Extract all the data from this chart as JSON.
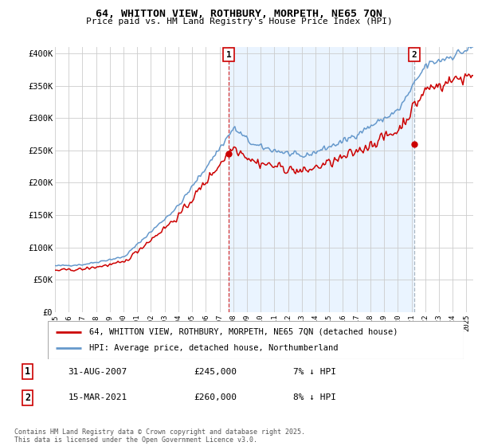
{
  "title1": "64, WHITTON VIEW, ROTHBURY, MORPETH, NE65 7QN",
  "title2": "Price paid vs. HM Land Registry's House Price Index (HPI)",
  "ylabel_ticks": [
    "£0",
    "£50K",
    "£100K",
    "£150K",
    "£200K",
    "£250K",
    "£300K",
    "£350K",
    "£400K"
  ],
  "ytick_vals": [
    0,
    50000,
    100000,
    150000,
    200000,
    250000,
    300000,
    350000,
    400000
  ],
  "ylim": [
    0,
    410000
  ],
  "xlim_start": 1995.0,
  "xlim_end": 2025.5,
  "marker1_date": 2007.664,
  "marker1_price": 245000,
  "marker1_text": "31-AUG-2007",
  "marker2_date": 2021.21,
  "marker2_price": 260000,
  "marker2_text": "15-MAR-2021",
  "line1_color": "#cc0000",
  "line2_color": "#6699cc",
  "shade_color": "#ddeeff",
  "vline1_color": "#cc0000",
  "vline2_color": "#8899aa",
  "legend1_label": "64, WHITTON VIEW, ROTHBURY, MORPETH, NE65 7QN (detached house)",
  "legend2_label": "HPI: Average price, detached house, Northumberland",
  "annotation_text": "Contains HM Land Registry data © Crown copyright and database right 2025.\nThis data is licensed under the Open Government Licence v3.0.",
  "xtick_years": [
    1995,
    1996,
    1997,
    1998,
    1999,
    2000,
    2001,
    2002,
    2003,
    2004,
    2005,
    2006,
    2007,
    2008,
    2009,
    2010,
    2011,
    2012,
    2013,
    2014,
    2015,
    2016,
    2017,
    2018,
    2019,
    2020,
    2021,
    2022,
    2023,
    2024,
    2025
  ],
  "background_color": "#ffffff",
  "grid_color": "#cccccc"
}
